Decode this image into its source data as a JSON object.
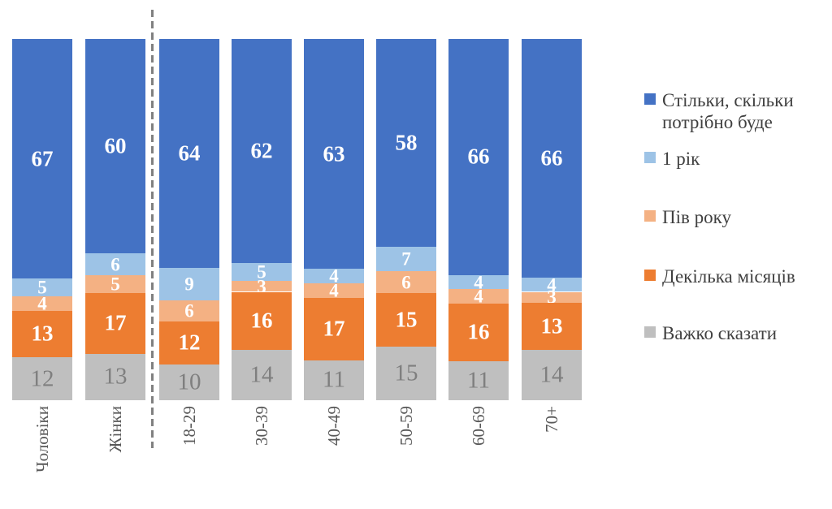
{
  "chart_data": {
    "type": "bar",
    "stacked": true,
    "normalized_percent": true,
    "title": "",
    "xlabel": "",
    "ylabel": "",
    "ylim": [
      0,
      100
    ],
    "grid": false,
    "legend_position": "right",
    "divider_after_category_index": 1,
    "categories": [
      "Чоловіки",
      "Жінки",
      "18-29",
      "30-39",
      "40-49",
      "50-59",
      "60-69",
      "70+"
    ],
    "series": [
      {
        "name": "Стільки, скільки потрібно буде",
        "color": "#4472C4",
        "label_color": "#FFFFFF",
        "values": [
          67,
          60,
          64,
          62,
          63,
          58,
          66,
          66
        ]
      },
      {
        "name": "1 рік",
        "color": "#9DC3E6",
        "label_color": "#FFFFFF",
        "values": [
          5,
          6,
          9,
          5,
          4,
          7,
          4,
          4
        ]
      },
      {
        "name": "Пів року",
        "color": "#F4B183",
        "label_color": "#FFFFFF",
        "values": [
          4,
          5,
          6,
          3,
          4,
          6,
          4,
          3
        ]
      },
      {
        "name": "Декілька місяців",
        "color": "#ED7D31",
        "label_color": "#FFFFFF",
        "values": [
          13,
          17,
          12,
          16,
          17,
          15,
          16,
          13
        ]
      },
      {
        "name": "Важко сказати",
        "color": "#BFBFBF",
        "label_color": "#7F7F7F",
        "values": [
          12,
          13,
          10,
          14,
          11,
          15,
          11,
          14
        ]
      }
    ]
  }
}
